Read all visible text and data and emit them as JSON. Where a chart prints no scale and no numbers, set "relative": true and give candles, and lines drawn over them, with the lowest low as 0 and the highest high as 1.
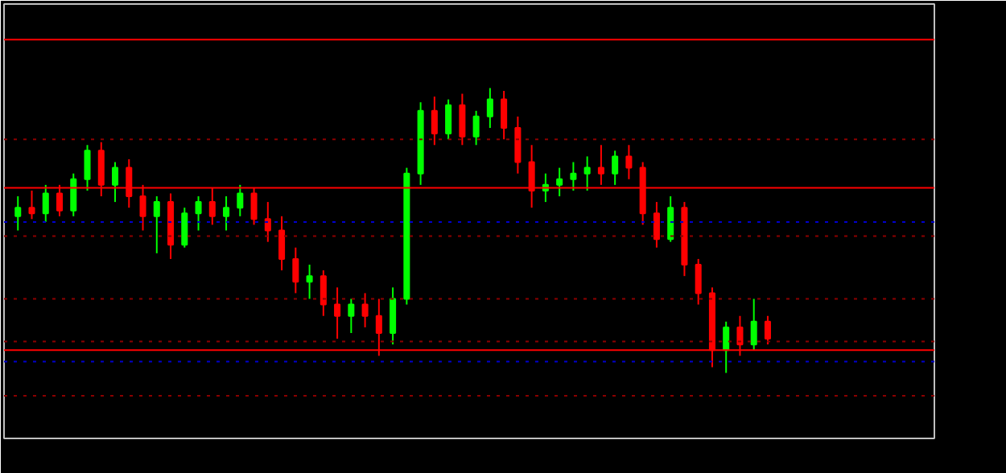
{
  "chart_data": {
    "type": "candlestick",
    "relative": true,
    "categories": [
      null,
      null,
      null,
      null,
      null,
      null,
      null,
      null,
      null,
      null,
      null,
      null,
      null,
      null,
      null,
      null,
      null,
      null,
      null,
      null,
      null,
      null,
      null,
      null,
      null,
      null,
      null,
      null,
      null,
      null,
      null,
      null,
      null,
      null,
      null,
      null,
      null,
      null,
      null,
      null,
      null,
      null,
      null,
      null,
      null,
      null,
      null,
      null,
      null,
      null,
      null,
      null,
      null,
      null,
      null
    ],
    "ohlc": [
      [
        0.55,
        0.62,
        0.5,
        0.58
      ],
      [
        0.58,
        0.64,
        0.54,
        0.56
      ],
      [
        0.56,
        0.66,
        0.53,
        0.63
      ],
      [
        0.63,
        0.66,
        0.55,
        0.57
      ],
      [
        0.57,
        0.7,
        0.55,
        0.68
      ],
      [
        0.68,
        0.8,
        0.64,
        0.78
      ],
      [
        0.78,
        0.81,
        0.62,
        0.66
      ],
      [
        0.66,
        0.74,
        0.6,
        0.72
      ],
      [
        0.72,
        0.75,
        0.58,
        0.62
      ],
      [
        0.62,
        0.66,
        0.5,
        0.55
      ],
      [
        0.55,
        0.62,
        0.42,
        0.6
      ],
      [
        0.6,
        0.63,
        0.4,
        0.45
      ],
      [
        0.45,
        0.58,
        0.44,
        0.56
      ],
      [
        0.56,
        0.62,
        0.5,
        0.6
      ],
      [
        0.6,
        0.65,
        0.52,
        0.55
      ],
      [
        0.55,
        0.62,
        0.5,
        0.58
      ],
      [
        0.58,
        0.66,
        0.55,
        0.63
      ],
      [
        0.63,
        0.65,
        0.52,
        0.54
      ],
      [
        0.54,
        0.6,
        0.46,
        0.5
      ],
      [
        0.5,
        0.55,
        0.36,
        0.4
      ],
      [
        0.4,
        0.44,
        0.28,
        0.32
      ],
      [
        0.32,
        0.38,
        0.26,
        0.34
      ],
      [
        0.34,
        0.36,
        0.2,
        0.24
      ],
      [
        0.24,
        0.3,
        0.12,
        0.2
      ],
      [
        0.2,
        0.26,
        0.14,
        0.24
      ],
      [
        0.24,
        0.28,
        0.16,
        0.2
      ],
      [
        0.2,
        0.26,
        0.06,
        0.14
      ],
      [
        0.14,
        0.3,
        0.1,
        0.26
      ],
      [
        0.26,
        0.72,
        0.24,
        0.7
      ],
      [
        0.7,
        0.95,
        0.66,
        0.92
      ],
      [
        0.92,
        0.97,
        0.8,
        0.84
      ],
      [
        0.84,
        0.96,
        0.82,
        0.94
      ],
      [
        0.94,
        0.98,
        0.8,
        0.83
      ],
      [
        0.83,
        0.92,
        0.8,
        0.9
      ],
      [
        0.9,
        1.0,
        0.86,
        0.96
      ],
      [
        0.96,
        0.99,
        0.82,
        0.86
      ],
      [
        0.86,
        0.9,
        0.7,
        0.74
      ],
      [
        0.74,
        0.8,
        0.58,
        0.64
      ],
      [
        0.64,
        0.7,
        0.6,
        0.66
      ],
      [
        0.66,
        0.72,
        0.62,
        0.68
      ],
      [
        0.68,
        0.74,
        0.64,
        0.7
      ],
      [
        0.7,
        0.76,
        0.64,
        0.72
      ],
      [
        0.72,
        0.8,
        0.66,
        0.7
      ],
      [
        0.7,
        0.78,
        0.66,
        0.76
      ],
      [
        0.76,
        0.8,
        0.68,
        0.72
      ],
      [
        0.72,
        0.74,
        0.52,
        0.56
      ],
      [
        0.56,
        0.6,
        0.44,
        0.47
      ],
      [
        0.47,
        0.62,
        0.46,
        0.58
      ],
      [
        0.58,
        0.6,
        0.34,
        0.38
      ],
      [
        0.38,
        0.4,
        0.24,
        0.28
      ],
      [
        0.28,
        0.3,
        0.02,
        0.08
      ],
      [
        0.08,
        0.18,
        0.0,
        0.16
      ],
      [
        0.16,
        0.2,
        0.06,
        0.1
      ],
      [
        0.1,
        0.26,
        0.08,
        0.18
      ],
      [
        0.18,
        0.2,
        0.1,
        0.12
      ]
    ],
    "colors": [
      "#00ff00",
      "#ff0000",
      "#00ff00",
      "#ff0000",
      "#00ff00",
      "#00ff00",
      "#ff0000",
      "#00ff00",
      "#ff0000",
      "#ff0000",
      "#00ff00",
      "#ff0000",
      "#00ff00",
      "#00ff00",
      "#ff0000",
      "#00ff00",
      "#00ff00",
      "#ff0000",
      "#ff0000",
      "#ff0000",
      "#ff0000",
      "#00ff00",
      "#ff0000",
      "#ff0000",
      "#00ff00",
      "#ff0000",
      "#ff0000",
      "#00ff00",
      "#00ff00",
      "#00ff00",
      "#ff0000",
      "#00ff00",
      "#ff0000",
      "#00ff00",
      "#00ff00",
      "#ff0000",
      "#ff0000",
      "#ff0000",
      "#00ff00",
      "#00ff00",
      "#00ff00",
      "#00ff00",
      "#ff0000",
      "#00ff00",
      "#ff0000",
      "#ff0000",
      "#ff0000",
      "#00ff00",
      "#ff0000",
      "#ff0000",
      "#ff0000",
      "#00ff00",
      "#ff0000",
      "#00ff00",
      "#ff0000"
    ],
    "ref_lines": [
      {
        "axis": "y",
        "value": 1.17,
        "color": "#ff0000",
        "line_style": "solid"
      },
      {
        "axis": "y",
        "value": 0.65,
        "color": "#ff0000",
        "line_style": "solid"
      },
      {
        "axis": "y",
        "value": 0.08,
        "color": "#ff0000",
        "line_style": "solid"
      },
      {
        "axis": "y",
        "value": 0.82,
        "color": "#8b0000",
        "line_style": "dotted"
      },
      {
        "axis": "y",
        "value": 0.53,
        "color": "#0000cd",
        "line_style": "dotted"
      },
      {
        "axis": "y",
        "value": 0.48,
        "color": "#8b0000",
        "line_style": "dotted"
      },
      {
        "axis": "y",
        "value": 0.26,
        "color": "#8b0000",
        "line_style": "dotted"
      },
      {
        "axis": "y",
        "value": 0.11,
        "color": "#8b0000",
        "line_style": "dotted"
      },
      {
        "axis": "y",
        "value": 0.04,
        "color": "#0000cd",
        "line_style": "dotted"
      },
      {
        "axis": "y",
        "value": -0.08,
        "color": "#8b0000",
        "line_style": "dotted"
      }
    ]
  }
}
